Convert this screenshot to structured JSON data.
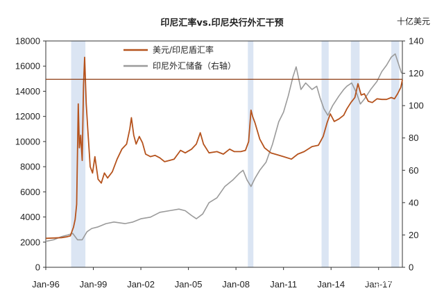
{
  "chart_data": {
    "type": "line",
    "title": "印尼汇率vs.印尼央行外汇干预",
    "y2_unit_label": "十亿美元",
    "x_tick_labels": [
      "Jan-96",
      "Jan-99",
      "Jan-02",
      "Jan-05",
      "Jan-08",
      "Jan-11",
      "Jan-14",
      "Jan-17"
    ],
    "x_range": [
      1996.0,
      2018.5
    ],
    "y_left": {
      "ylim": [
        0,
        18000
      ],
      "ticks": [
        0,
        2000,
        4000,
        6000,
        8000,
        10000,
        12000,
        14000,
        16000,
        18000
      ]
    },
    "y_right": {
      "ylim": [
        0,
        140
      ],
      "ticks": [
        0,
        20,
        40,
        60,
        80,
        100,
        120,
        140
      ]
    },
    "reference_line": {
      "axis": "left",
      "value": 14950,
      "color": "#8b3a0f"
    },
    "shaded_periods": [
      [
        1997.6,
        1998.5
      ],
      [
        2008.75,
        2009.1
      ],
      [
        2013.4,
        2013.85
      ],
      [
        2015.25,
        2015.8
      ],
      [
        2017.8,
        2018.3
      ]
    ],
    "series": [
      {
        "name": "美元/印尼盾汇率",
        "axis": "left",
        "color": "#b5521c",
        "points": [
          [
            1996.0,
            2300
          ],
          [
            1996.5,
            2330
          ],
          [
            1997.0,
            2360
          ],
          [
            1997.3,
            2420
          ],
          [
            1997.55,
            2500
          ],
          [
            1997.75,
            3200
          ],
          [
            1997.85,
            3800
          ],
          [
            1997.95,
            5000
          ],
          [
            1998.05,
            13000
          ],
          [
            1998.12,
            9500
          ],
          [
            1998.2,
            10500
          ],
          [
            1998.3,
            8500
          ],
          [
            1998.38,
            14500
          ],
          [
            1998.45,
            16700
          ],
          [
            1998.55,
            13000
          ],
          [
            1998.65,
            11000
          ],
          [
            1998.8,
            8000
          ],
          [
            1998.95,
            7500
          ],
          [
            1999.1,
            8800
          ],
          [
            1999.3,
            7000
          ],
          [
            1999.5,
            6700
          ],
          [
            1999.7,
            7500
          ],
          [
            1999.9,
            7100
          ],
          [
            2000.2,
            7600
          ],
          [
            2000.5,
            8600
          ],
          [
            2000.8,
            9400
          ],
          [
            2001.1,
            9800
          ],
          [
            2001.3,
            11000
          ],
          [
            2001.4,
            11900
          ],
          [
            2001.55,
            10500
          ],
          [
            2001.7,
            9800
          ],
          [
            2001.9,
            10400
          ],
          [
            2002.1,
            9900
          ],
          [
            2002.3,
            9000
          ],
          [
            2002.6,
            8800
          ],
          [
            2002.9,
            8900
          ],
          [
            2003.2,
            8700
          ],
          [
            2003.5,
            8400
          ],
          [
            2003.8,
            8500
          ],
          [
            2004.1,
            8600
          ],
          [
            2004.5,
            9300
          ],
          [
            2004.8,
            9100
          ],
          [
            2005.2,
            9400
          ],
          [
            2005.5,
            9800
          ],
          [
            2005.75,
            10700
          ],
          [
            2005.95,
            9800
          ],
          [
            2006.3,
            9100
          ],
          [
            2006.8,
            9200
          ],
          [
            2007.2,
            9000
          ],
          [
            2007.6,
            9400
          ],
          [
            2007.9,
            9200
          ],
          [
            2008.3,
            9200
          ],
          [
            2008.6,
            9300
          ],
          [
            2008.8,
            10000
          ],
          [
            2008.95,
            12500
          ],
          [
            2009.05,
            12000
          ],
          [
            2009.2,
            11500
          ],
          [
            2009.5,
            10200
          ],
          [
            2009.8,
            9500
          ],
          [
            2010.2,
            9100
          ],
          [
            2010.6,
            8950
          ],
          [
            2011.0,
            8800
          ],
          [
            2011.5,
            8600
          ],
          [
            2011.9,
            9000
          ],
          [
            2012.3,
            9200
          ],
          [
            2012.8,
            9600
          ],
          [
            2013.2,
            9700
          ],
          [
            2013.5,
            10400
          ],
          [
            2013.75,
            11500
          ],
          [
            2013.95,
            12200
          ],
          [
            2014.2,
            11600
          ],
          [
            2014.5,
            11800
          ],
          [
            2014.8,
            12100
          ],
          [
            2015.0,
            12600
          ],
          [
            2015.25,
            13100
          ],
          [
            2015.5,
            13500
          ],
          [
            2015.7,
            14600
          ],
          [
            2015.9,
            13700
          ],
          [
            2016.1,
            13800
          ],
          [
            2016.35,
            13200
          ],
          [
            2016.6,
            13100
          ],
          [
            2016.9,
            13400
          ],
          [
            2017.2,
            13350
          ],
          [
            2017.5,
            13350
          ],
          [
            2017.8,
            13500
          ],
          [
            2018.0,
            13400
          ],
          [
            2018.2,
            13800
          ],
          [
            2018.4,
            14300
          ],
          [
            2018.5,
            14900
          ]
        ]
      },
      {
        "name": "印尼外汇储备（右轴）",
        "axis": "right",
        "color": "#9a9a9a",
        "points": [
          [
            1996.0,
            16
          ],
          [
            1996.5,
            17
          ],
          [
            1997.0,
            19
          ],
          [
            1997.4,
            20
          ],
          [
            1997.7,
            21
          ],
          [
            1998.0,
            17
          ],
          [
            1998.3,
            17
          ],
          [
            1998.6,
            22
          ],
          [
            1998.9,
            24
          ],
          [
            1999.3,
            25
          ],
          [
            1999.8,
            27
          ],
          [
            2000.3,
            28
          ],
          [
            2001.0,
            27
          ],
          [
            2001.5,
            28
          ],
          [
            2002.0,
            30
          ],
          [
            2002.6,
            31
          ],
          [
            2003.2,
            34
          ],
          [
            2003.8,
            35
          ],
          [
            2004.4,
            36
          ],
          [
            2004.8,
            35
          ],
          [
            2005.2,
            32
          ],
          [
            2005.5,
            30
          ],
          [
            2005.9,
            33
          ],
          [
            2006.3,
            40
          ],
          [
            2006.8,
            43
          ],
          [
            2007.3,
            50
          ],
          [
            2007.8,
            54
          ],
          [
            2008.2,
            58
          ],
          [
            2008.45,
            60
          ],
          [
            2008.7,
            54
          ],
          [
            2008.95,
            50
          ],
          [
            2009.2,
            55
          ],
          [
            2009.5,
            60
          ],
          [
            2009.9,
            65
          ],
          [
            2010.3,
            76
          ],
          [
            2010.7,
            90
          ],
          [
            2011.0,
            96
          ],
          [
            2011.3,
            106
          ],
          [
            2011.6,
            118
          ],
          [
            2011.8,
            124
          ],
          [
            2012.1,
            110
          ],
          [
            2012.4,
            114
          ],
          [
            2012.8,
            110
          ],
          [
            2013.1,
            112
          ],
          [
            2013.3,
            105
          ],
          [
            2013.55,
            98
          ],
          [
            2013.8,
            94
          ],
          [
            2014.1,
            100
          ],
          [
            2014.5,
            106
          ],
          [
            2014.8,
            110
          ],
          [
            2015.0,
            112
          ],
          [
            2015.3,
            114
          ],
          [
            2015.6,
            108
          ],
          [
            2015.85,
            101
          ],
          [
            2016.1,
            104
          ],
          [
            2016.5,
            110
          ],
          [
            2016.9,
            115
          ],
          [
            2017.2,
            121
          ],
          [
            2017.5,
            125
          ],
          [
            2017.8,
            130
          ],
          [
            2018.05,
            132
          ],
          [
            2018.25,
            126
          ],
          [
            2018.45,
            120
          ]
        ]
      }
    ],
    "legend": [
      "美元/印尼盾汇率",
      "印尼外汇储备（右轴）"
    ],
    "legend_placement": "top-left",
    "watermark": "知乎 @秋水时至"
  }
}
